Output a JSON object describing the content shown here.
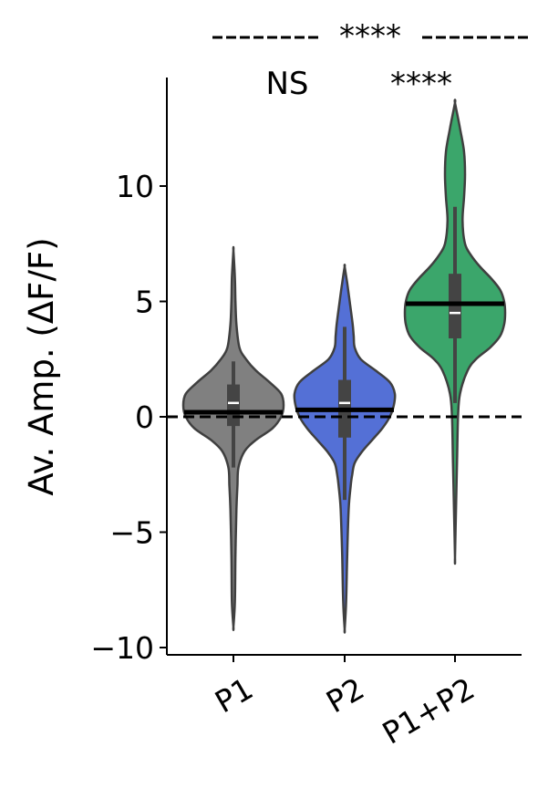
{
  "chart_data": {
    "type": "violin",
    "ylabel": "Av. Amp. (ΔF/F)",
    "xlabel": "",
    "ylim": [
      -10.3,
      14.6
    ],
    "yticks": [
      -10,
      -5,
      0,
      5,
      10
    ],
    "ytick_labels": [
      "−10",
      "−5",
      "0",
      "5",
      "10"
    ],
    "reference_line": {
      "y": 0,
      "style": "dashed",
      "color": "#000000"
    },
    "categories": [
      "P1",
      "P2",
      "P1+P2"
    ],
    "groups": [
      {
        "label": "P1",
        "color": "#808080",
        "mean": 0.2,
        "median": 0.6,
        "q1": -0.4,
        "q3": 1.4,
        "whisker_low": -2.2,
        "whisker_high": 2.4,
        "min": -9.1,
        "max": 7.2,
        "density": [
          [
            -9.1,
            0.0
          ],
          [
            -8.0,
            0.03
          ],
          [
            -6.0,
            0.04
          ],
          [
            -4.0,
            0.06
          ],
          [
            -3.0,
            0.08
          ],
          [
            -2.2,
            0.1
          ],
          [
            -1.5,
            0.22
          ],
          [
            -1.0,
            0.45
          ],
          [
            -0.5,
            0.78
          ],
          [
            0.0,
            0.95
          ],
          [
            0.5,
            1.0
          ],
          [
            1.0,
            0.95
          ],
          [
            1.5,
            0.72
          ],
          [
            2.0,
            0.45
          ],
          [
            2.5,
            0.25
          ],
          [
            3.0,
            0.12
          ],
          [
            4.0,
            0.06
          ],
          [
            5.0,
            0.04
          ],
          [
            6.0,
            0.03
          ],
          [
            7.2,
            0.0
          ]
        ]
      },
      {
        "label": "P2",
        "color": "#5470D6",
        "mean": 0.3,
        "median": 0.6,
        "q1": -0.9,
        "q3": 1.6,
        "whisker_low": -3.6,
        "whisker_high": 3.9,
        "min": -9.2,
        "max": 6.5,
        "density": [
          [
            -9.2,
            0.0
          ],
          [
            -8.0,
            0.03
          ],
          [
            -6.0,
            0.05
          ],
          [
            -4.0,
            0.08
          ],
          [
            -3.0,
            0.12
          ],
          [
            -2.5,
            0.15
          ],
          [
            -2.0,
            0.2
          ],
          [
            -1.5,
            0.35
          ],
          [
            -1.0,
            0.55
          ],
          [
            -0.5,
            0.75
          ],
          [
            0.0,
            0.9
          ],
          [
            0.5,
            0.98
          ],
          [
            1.0,
            1.0
          ],
          [
            1.5,
            0.9
          ],
          [
            2.0,
            0.62
          ],
          [
            2.5,
            0.32
          ],
          [
            3.0,
            0.2
          ],
          [
            3.5,
            0.18
          ],
          [
            4.0,
            0.16
          ],
          [
            5.0,
            0.1
          ],
          [
            5.8,
            0.05
          ],
          [
            6.5,
            0.0
          ]
        ]
      },
      {
        "label": "P1+P2",
        "color": "#3BA66B",
        "mean": 4.9,
        "median": 4.5,
        "q1": 3.4,
        "q3": 6.2,
        "whisker_low": 0.6,
        "whisker_high": 9.1,
        "min": -6.1,
        "max": 13.6,
        "density": [
          [
            -6.1,
            0.0
          ],
          [
            -4.0,
            0.02
          ],
          [
            -2.0,
            0.04
          ],
          [
            0.0,
            0.06
          ],
          [
            1.0,
            0.1
          ],
          [
            2.0,
            0.25
          ],
          [
            2.5,
            0.42
          ],
          [
            3.0,
            0.7
          ],
          [
            3.5,
            0.9
          ],
          [
            4.0,
            0.98
          ],
          [
            4.5,
            1.0
          ],
          [
            5.0,
            0.98
          ],
          [
            5.5,
            0.9
          ],
          [
            6.0,
            0.72
          ],
          [
            6.5,
            0.5
          ],
          [
            7.0,
            0.32
          ],
          [
            7.5,
            0.2
          ],
          [
            8.5,
            0.15
          ],
          [
            9.5,
            0.18
          ],
          [
            10.5,
            0.2
          ],
          [
            11.5,
            0.18
          ],
          [
            12.5,
            0.1
          ],
          [
            13.6,
            0.0
          ]
        ]
      }
    ],
    "significance": [
      {
        "label": "NS",
        "over": "P1-P2",
        "type": "pair"
      },
      {
        "label": "****",
        "over": "P1+P2",
        "type": "single"
      },
      {
        "label": "****",
        "over": "P1-P1+P2",
        "type": "bracket",
        "line_style": "dashed"
      }
    ]
  }
}
